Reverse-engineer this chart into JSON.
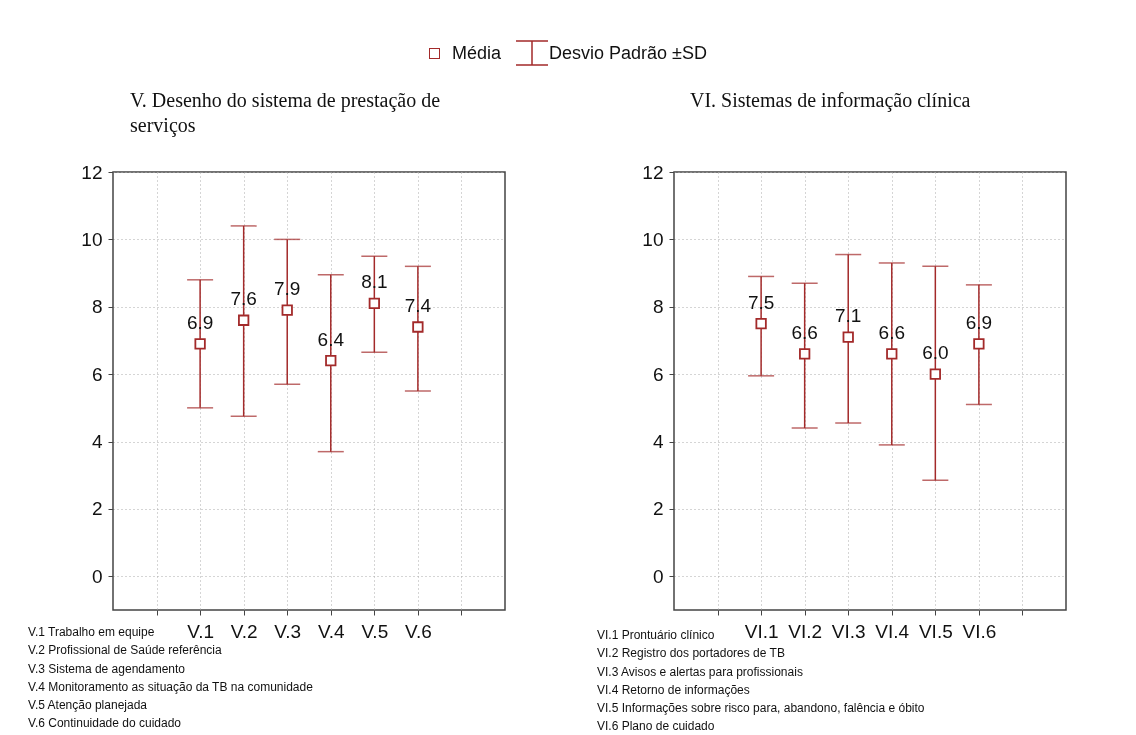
{
  "chart_data": [
    {
      "type": "scatter",
      "title": "V. Desenho do sistema de prestação de serviços",
      "categories": [
        null,
        "V.1",
        "V.2",
        "V.3",
        "V.4",
        "V.5",
        "V.6",
        null
      ],
      "series": [
        {
          "name": "Média",
          "color": "#a32a2a",
          "values": [
            null,
            6.9,
            7.6,
            7.9,
            6.4,
            8.1,
            7.4,
            null
          ],
          "errors": [
            null,
            [
              5.0,
              8.8
            ],
            [
              4.75,
              10.4
            ],
            [
              5.7,
              10.0
            ],
            [
              3.7,
              8.95
            ],
            [
              6.65,
              9.5
            ],
            [
              5.5,
              9.2
            ],
            null
          ],
          "value_labels": [
            null,
            "6.9",
            "7.6",
            "7.9",
            "6.4",
            "8.1",
            "7.4",
            null
          ]
        }
      ],
      "ylim": [
        -1,
        12
      ],
      "yticks": [
        0,
        2,
        4,
        6,
        8,
        10,
        12
      ],
      "grid": true,
      "marker": "square",
      "legend": "top",
      "annotations": [
        "Desvio Padrão ±SD",
        "V.1 Trabalho em equipe",
        "V.2 Profissional de Saúde referência",
        "V.3 Sistema de agendamento",
        "V.4 Monitoramento as situação da TB na comunidade",
        "V.5 Atenção planejada",
        "V.6 Continuidade do cuidado"
      ]
    },
    {
      "type": "scatter",
      "title": "VI. Sistemas de informação clínica",
      "categories": [
        null,
        "VI.1",
        "VI.2",
        "VI.3",
        "VI.4",
        "VI.5",
        "VI.6",
        null
      ],
      "series": [
        {
          "color": "#a32a2a",
          "values": [
            null,
            7.5,
            6.6,
            7.1,
            6.6,
            6.0,
            6.9,
            null
          ],
          "errors": [
            null,
            [
              5.95,
              8.9
            ],
            [
              4.4,
              8.7
            ],
            [
              4.55,
              9.55
            ],
            [
              3.9,
              9.3
            ],
            [
              2.85,
              9.2
            ],
            [
              5.1,
              8.65
            ],
            null
          ],
          "value_labels": [
            null,
            "7.5",
            "6.6",
            "7.1",
            "6.6",
            "6.0",
            "6.9",
            null
          ]
        }
      ],
      "ylim": [
        -1,
        12
      ],
      "yticks": [
        0,
        2,
        4,
        6,
        8,
        10,
        12
      ],
      "grid": true,
      "marker": "square",
      "annotations": [
        "VI.1 Prontuário clínico",
        "VI.2 Registro dos portadores de TB",
        "VI.3 Avisos e alertas para profissionais",
        "VI.4 Retorno de informações",
        "VI.5 Informações sobre risco para, abandono, falência e óbito",
        "VI.6 Plano de cuidado"
      ]
    }
  ]
}
